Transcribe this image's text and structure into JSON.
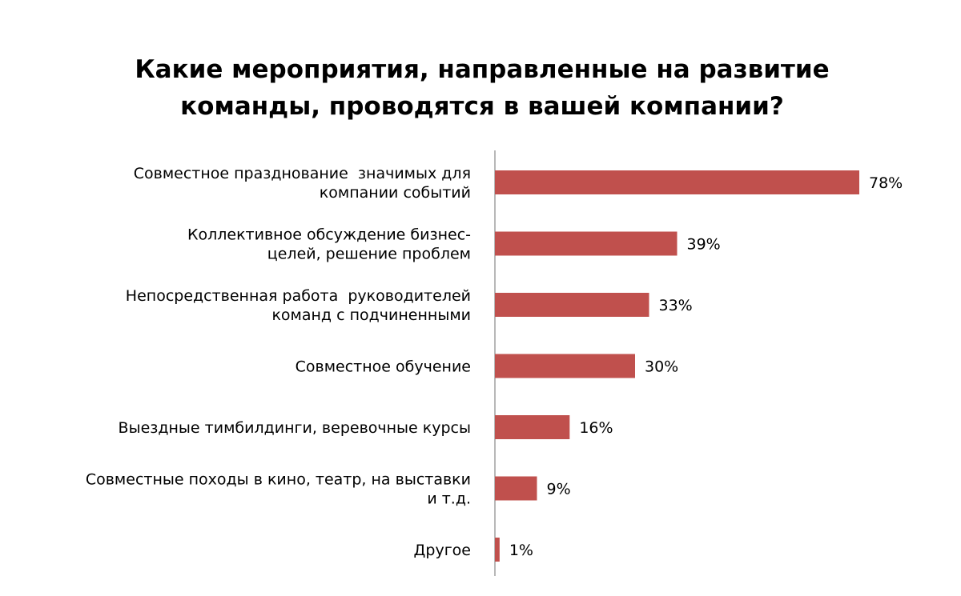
{
  "chart_data": {
    "type": "bar",
    "orientation": "horizontal",
    "title_lines": [
      "Какие мероприятия, направленные на развитие",
      "команды, проводятся в вашей компании?"
    ],
    "categories": [
      [
        "Совместное празднование  значимых для",
        "компании событий"
      ],
      [
        "Коллективное обсуждение бизнес-",
        "целей, решение проблем"
      ],
      [
        "Непосредственная работа  руководителей",
        "команд с подчиненными"
      ],
      [
        "Совместное обучение"
      ],
      [
        "Выездные тимбилдинги, веревочные курсы"
      ],
      [
        "Совместные походы в кино, театр, на выставки",
        "и т.д."
      ],
      [
        "Другое"
      ]
    ],
    "values": [
      78,
      39,
      33,
      30,
      16,
      9,
      1
    ],
    "value_labels": [
      "78%",
      "39%",
      "33%",
      "30%",
      "16%",
      "9%",
      "1%"
    ],
    "bar_color": "#c0504d",
    "grid": false,
    "legend": "none"
  }
}
